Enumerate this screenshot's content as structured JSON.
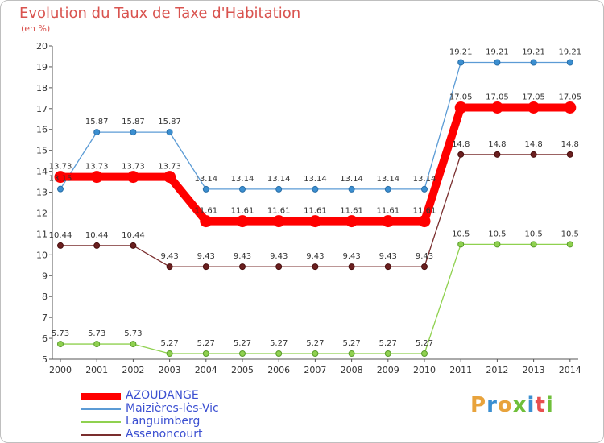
{
  "header": {
    "title": "Evolution du Taux de Taxe d'Habitation",
    "unit": "(en %)"
  },
  "brand": {
    "letters": [
      "P",
      "r",
      "o",
      "x",
      "i",
      "t",
      "i"
    ],
    "colors": [
      "#e8a33c",
      "#3b8fd1",
      "#e8a33c",
      "#6fbf3a",
      "#3b8fd1",
      "#e84f4f",
      "#6fbf3a"
    ]
  },
  "chart_data": {
    "type": "line",
    "title": "Evolution du Taux de Taxe d'Habitation",
    "ylabel": "(en %)",
    "xlabel": "",
    "categories": [
      "2000",
      "2001",
      "2002",
      "2003",
      "2004",
      "2005",
      "2006",
      "2007",
      "2008",
      "2009",
      "2010",
      "2011",
      "2012",
      "2013",
      "2014"
    ],
    "ylim": [
      5,
      20
    ],
    "yticks": [
      5,
      6,
      7,
      8,
      9,
      10,
      11,
      12,
      13,
      14,
      15,
      16,
      17,
      18,
      19,
      20
    ],
    "grid": false,
    "legend_position": "bottom-left",
    "series": [
      {
        "name": "AZOUDANGE",
        "color": "#ff0000",
        "values": [
          13.73,
          13.73,
          13.73,
          13.73,
          11.61,
          11.61,
          11.61,
          11.61,
          11.61,
          11.61,
          11.61,
          17.05,
          17.05,
          17.05,
          17.05
        ],
        "labels": [
          "13.73",
          "13.73",
          "13.73",
          "13.73",
          "11.61",
          "11.61",
          "11.61",
          "11.61",
          "11.61",
          "11.61",
          "11.61",
          "17.05",
          "17.05",
          "17.05",
          "17.05"
        ]
      },
      {
        "name": "Maizières-lès-Vic",
        "color": "#5b9bd5",
        "values": [
          13.15,
          15.87,
          15.87,
          15.87,
          13.14,
          13.14,
          13.14,
          13.14,
          13.14,
          13.14,
          13.14,
          19.21,
          19.21,
          19.21,
          19.21
        ],
        "labels": [
          "13.15",
          "15.87",
          "15.87",
          "15.87",
          "13.14",
          "13.14",
          "13.14",
          "13.14",
          "13.14",
          "13.14",
          "13.14",
          "19.21",
          "19.21",
          "19.21",
          "19.21"
        ]
      },
      {
        "name": "Languimberg",
        "color": "#8fd14f",
        "values": [
          5.73,
          5.73,
          5.73,
          5.27,
          5.27,
          5.27,
          5.27,
          5.27,
          5.27,
          5.27,
          5.27,
          10.5,
          10.5,
          10.5,
          10.5
        ],
        "labels": [
          "5.73",
          "5.73",
          "5.73",
          "5.27",
          "5.27",
          "5.27",
          "5.27",
          "5.27",
          "5.27",
          "5.27",
          "5.27",
          "10.5",
          "10.5",
          "10.5",
          "10.5"
        ]
      },
      {
        "name": "Assenoncourt",
        "color": "#7a2e2e",
        "values": [
          10.44,
          10.44,
          10.44,
          9.43,
          9.43,
          9.43,
          9.43,
          9.43,
          9.43,
          9.43,
          9.43,
          14.8,
          14.8,
          14.8,
          14.8
        ],
        "labels": [
          "10.44",
          "10.44",
          "10.44",
          "9.43",
          "9.43",
          "9.43",
          "9.43",
          "9.43",
          "9.43",
          "9.43",
          "9.43",
          "14.8",
          "14.8",
          "14.8",
          "14.8"
        ]
      }
    ]
  }
}
